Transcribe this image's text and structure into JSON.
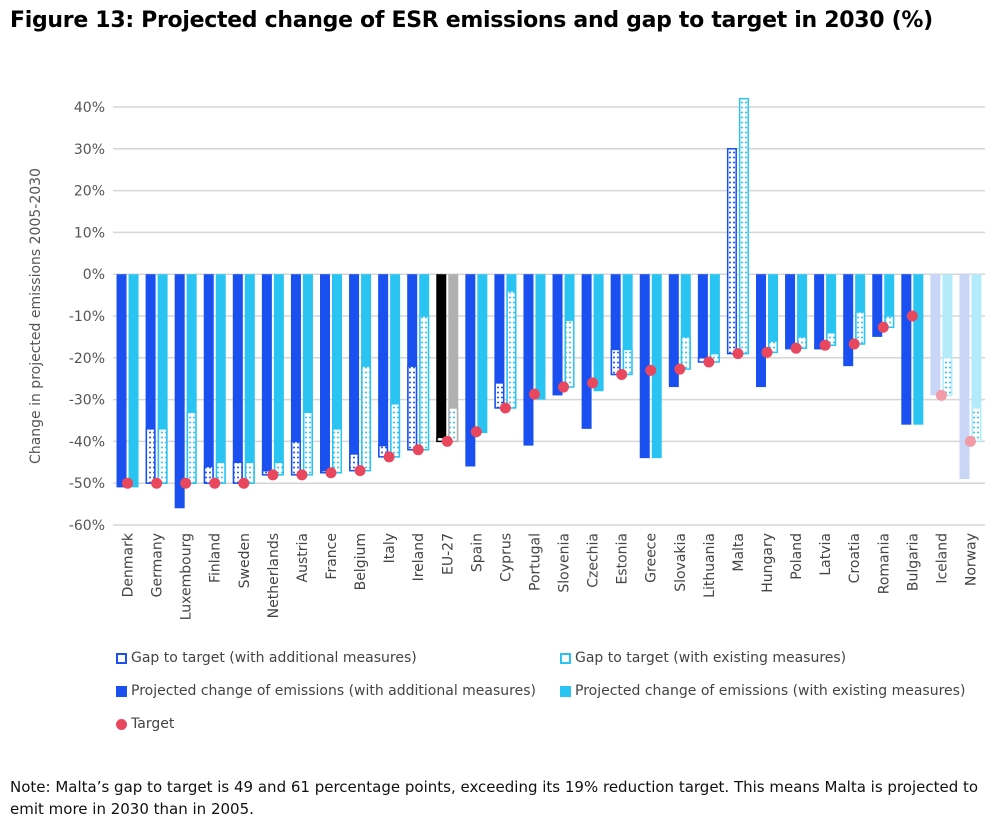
{
  "title": "Figure 13: Projected change of ESR emissions and gap to target in 2030 (%)",
  "note": "Note: Malta’s gap to target is 49 and 61 percentage points, exceeding its 19% reduction target. This means Malta is projected to emit more in 2030 than in 2005.",
  "legend": {
    "gap_add": "Gap to target (with additional measures)",
    "gap_ex": "Gap to target (with existing measures)",
    "proj_add": "Projected change of emissions (with additional measures)",
    "proj_ex": "Projected change of emissions (with existing measures)",
    "target": "Target"
  },
  "colors": {
    "add": "#1a4ff0",
    "ex": "#29c4f2",
    "target": "#e9475e",
    "eu_add": "#000000",
    "eu_ex": "#b0b0b0",
    "fade_add": "#c9d6f7",
    "fade_ex": "#b3ebfa",
    "fade_target": "#f29aa6"
  },
  "chart_data": {
    "type": "bar",
    "title": "Figure 13: Projected change of ESR emissions and gap to target in 2030 (%)",
    "ylabel": "Change in projected emissions 2005-2030",
    "ylim": [
      -60,
      40
    ],
    "yticks": [
      "40%",
      "30%",
      "20%",
      "10%",
      "0%",
      "-10%",
      "-20%",
      "-30%",
      "-40%",
      "-50%",
      "-60%"
    ],
    "categories": [
      "Denmark",
      "Germany",
      "Luxembourg",
      "Finland",
      "Sweden",
      "Netherlands",
      "Austria",
      "France",
      "Belgium",
      "Italy",
      "Ireland",
      "EU-27",
      "Spain",
      "Cyprus",
      "Portugal",
      "Slovenia",
      "Czechia",
      "Estonia",
      "Greece",
      "Slovakia",
      "Lithuania",
      "Malta",
      "Hungary",
      "Poland",
      "Latvia",
      "Croatia",
      "Romania",
      "Bulgaria",
      "Iceland",
      "Norway"
    ],
    "series": [
      {
        "name": "Projected change of emissions (with additional measures)",
        "values": [
          -51,
          -37,
          -56,
          -46,
          -45,
          -47,
          -40,
          -47,
          -43,
          -41,
          -22,
          -39,
          -46,
          -26,
          -41,
          -29,
          -37,
          -18,
          -44,
          -27,
          -20,
          30,
          -27,
          -18,
          -18,
          -22,
          -15,
          -36,
          -29,
          -49
        ]
      },
      {
        "name": "Projected change of emissions (with existing measures)",
        "values": [
          -51,
          -37,
          -33,
          -45,
          -45,
          -45,
          -33,
          -37,
          -22,
          -31,
          -10,
          -32,
          -38,
          -4,
          -30,
          -11,
          -28,
          -18,
          -44,
          -15,
          -19,
          42,
          -16,
          -15,
          -14,
          -9,
          -10,
          -36,
          -20,
          -32
        ]
      },
      {
        "name": "Target",
        "values": [
          -50,
          -50,
          -50,
          -50,
          -50,
          -48,
          -48,
          -47.5,
          -47,
          -43.7,
          -42,
          -40,
          -37.7,
          -32,
          -28.7,
          -27,
          -26,
          -24,
          -23,
          -22.7,
          -21,
          -19,
          -18.7,
          -17.7,
          -17,
          -16.7,
          -12.7,
          -10,
          -29,
          -40
        ]
      }
    ]
  }
}
